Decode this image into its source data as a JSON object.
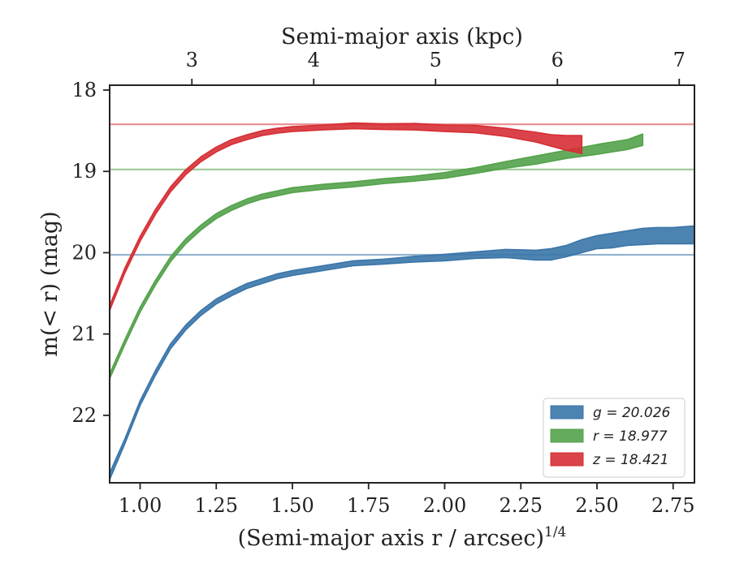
{
  "chart_data": {
    "type": "line",
    "xlabel": "(Semi-major axis r / arcsec)",
    "xlabel_super": "1/4",
    "x2label": "Semi-major axis (kpc)",
    "ylabel": "m(< r) (mag)",
    "xlim": [
      0.9,
      2.82
    ],
    "ylim": [
      22.83,
      17.94
    ],
    "y_inverted": true,
    "xticks": [
      {
        "value": 1.0,
        "label": "1.00"
      },
      {
        "value": 1.25,
        "label": "1.25"
      },
      {
        "value": 1.5,
        "label": "1.50"
      },
      {
        "value": 1.75,
        "label": "1.75"
      },
      {
        "value": 2.0,
        "label": "2.00"
      },
      {
        "value": 2.25,
        "label": "2.25"
      },
      {
        "value": 2.5,
        "label": "2.50"
      },
      {
        "value": 2.75,
        "label": "2.75"
      }
    ],
    "yticks": [
      {
        "value": 18,
        "label": "18"
      },
      {
        "value": 19,
        "label": "19"
      },
      {
        "value": 20,
        "label": "20"
      },
      {
        "value": 21,
        "label": "21"
      },
      {
        "value": 22,
        "label": "22"
      }
    ],
    "x2ticks": [
      {
        "value": 1.17,
        "label": "3"
      },
      {
        "value": 1.57,
        "label": "4"
      },
      {
        "value": 1.97,
        "label": "5"
      },
      {
        "value": 2.37,
        "label": "6"
      },
      {
        "value": 2.77,
        "label": "7"
      }
    ],
    "legend": {
      "position": "lower-right"
    },
    "series": [
      {
        "name": "g",
        "label_value": "20.026",
        "color": "#3a75a9",
        "asymptote": 20.026,
        "points": [
          [
            0.9,
            22.75,
            0.04
          ],
          [
            0.95,
            22.32,
            0.03
          ],
          [
            1.0,
            21.85,
            0.03
          ],
          [
            1.05,
            21.48,
            0.03
          ],
          [
            1.1,
            21.15,
            0.03
          ],
          [
            1.15,
            20.92,
            0.03
          ],
          [
            1.2,
            20.74,
            0.03
          ],
          [
            1.25,
            20.6,
            0.03
          ],
          [
            1.3,
            20.5,
            0.03
          ],
          [
            1.35,
            20.41,
            0.03
          ],
          [
            1.4,
            20.35,
            0.03
          ],
          [
            1.45,
            20.29,
            0.03
          ],
          [
            1.5,
            20.25,
            0.03
          ],
          [
            1.6,
            20.19,
            0.03
          ],
          [
            1.7,
            20.13,
            0.03
          ],
          [
            1.8,
            20.11,
            0.03
          ],
          [
            1.9,
            20.08,
            0.035
          ],
          [
            2.0,
            20.06,
            0.04
          ],
          [
            2.1,
            20.03,
            0.04
          ],
          [
            2.2,
            20.01,
            0.05
          ],
          [
            2.3,
            20.03,
            0.06
          ],
          [
            2.35,
            20.02,
            0.07
          ],
          [
            2.4,
            19.98,
            0.07
          ],
          [
            2.45,
            19.92,
            0.08
          ],
          [
            2.5,
            19.87,
            0.08
          ],
          [
            2.55,
            19.85,
            0.09
          ],
          [
            2.6,
            19.82,
            0.09
          ],
          [
            2.65,
            19.8,
            0.1
          ],
          [
            2.7,
            19.79,
            0.1
          ],
          [
            2.75,
            19.79,
            0.1
          ],
          [
            2.82,
            19.78,
            0.11
          ]
        ]
      },
      {
        "name": "r",
        "label_value": "18.977",
        "color": "#54a24b",
        "asymptote": 18.977,
        "points": [
          [
            0.9,
            21.52,
            0.03
          ],
          [
            0.95,
            21.1,
            0.03
          ],
          [
            1.0,
            20.7,
            0.03
          ],
          [
            1.05,
            20.37,
            0.03
          ],
          [
            1.1,
            20.08,
            0.03
          ],
          [
            1.15,
            19.86,
            0.03
          ],
          [
            1.2,
            19.69,
            0.03
          ],
          [
            1.25,
            19.55,
            0.03
          ],
          [
            1.3,
            19.45,
            0.03
          ],
          [
            1.35,
            19.37,
            0.03
          ],
          [
            1.4,
            19.31,
            0.03
          ],
          [
            1.45,
            19.27,
            0.03
          ],
          [
            1.5,
            19.23,
            0.03
          ],
          [
            1.6,
            19.19,
            0.03
          ],
          [
            1.7,
            19.16,
            0.03
          ],
          [
            1.8,
            19.12,
            0.03
          ],
          [
            1.9,
            19.09,
            0.03
          ],
          [
            2.0,
            19.05,
            0.035
          ],
          [
            2.1,
            18.99,
            0.035
          ],
          [
            2.2,
            18.92,
            0.04
          ],
          [
            2.3,
            18.86,
            0.05
          ],
          [
            2.4,
            18.79,
            0.05
          ],
          [
            2.5,
            18.73,
            0.06
          ],
          [
            2.6,
            18.67,
            0.06
          ],
          [
            2.65,
            18.61,
            0.07
          ]
        ]
      },
      {
        "name": "z",
        "label_value": "18.421",
        "color": "#d62f35",
        "asymptote": 18.421,
        "points": [
          [
            0.9,
            20.68,
            0.03
          ],
          [
            0.95,
            20.22,
            0.03
          ],
          [
            1.0,
            19.83,
            0.03
          ],
          [
            1.05,
            19.5,
            0.03
          ],
          [
            1.1,
            19.22,
            0.03
          ],
          [
            1.15,
            19.01,
            0.03
          ],
          [
            1.2,
            18.85,
            0.03
          ],
          [
            1.25,
            18.73,
            0.03
          ],
          [
            1.3,
            18.64,
            0.03
          ],
          [
            1.35,
            18.58,
            0.03
          ],
          [
            1.4,
            18.53,
            0.03
          ],
          [
            1.45,
            18.5,
            0.03
          ],
          [
            1.5,
            18.48,
            0.03
          ],
          [
            1.6,
            18.46,
            0.03
          ],
          [
            1.7,
            18.44,
            0.035
          ],
          [
            1.8,
            18.45,
            0.035
          ],
          [
            1.9,
            18.45,
            0.04
          ],
          [
            2.0,
            18.47,
            0.04
          ],
          [
            2.1,
            18.48,
            0.045
          ],
          [
            2.2,
            18.52,
            0.05
          ],
          [
            2.3,
            18.58,
            0.06
          ],
          [
            2.35,
            18.62,
            0.07
          ],
          [
            2.4,
            18.65,
            0.09
          ],
          [
            2.45,
            18.67,
            0.11
          ]
        ]
      }
    ]
  }
}
